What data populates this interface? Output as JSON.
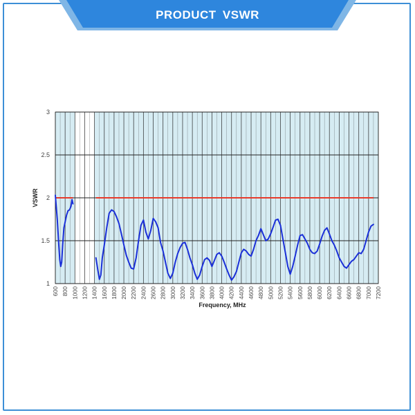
{
  "header": {
    "title": "PRODUCT  VSWR"
  },
  "colors": {
    "accent": "#3d8fd6",
    "plot_fill": "#d6ecf3",
    "grid": "#222222",
    "series": "#1a2fd8",
    "limit": "#e83a2a"
  },
  "chart_data": {
    "type": "line",
    "xlabel": "Frequency, MHz",
    "ylabel": "VSWR",
    "xlim": [
      600,
      7200
    ],
    "ylim": [
      1,
      3
    ],
    "x_ticks": [
      "600",
      "800",
      "1000",
      "1200",
      "1400",
      "1600",
      "1800",
      "2000",
      "2200",
      "2400",
      "2600",
      "2800",
      "3000",
      "3200",
      "3400",
      "3600",
      "3800",
      "4000",
      "4200",
      "4400",
      "4600",
      "4800",
      "5000",
      "5200",
      "5400",
      "5600",
      "5800",
      "6000",
      "6200",
      "6400",
      "6600",
      "6800",
      "7000",
      "7200"
    ],
    "y_ticks": [
      "1",
      "1.5",
      "2",
      "2.5",
      "3"
    ],
    "y_tick_values": [
      1,
      1.5,
      2,
      2.5,
      3
    ],
    "grid": true,
    "unshaded_bands": [
      [
        1000,
        1400
      ]
    ],
    "series": [
      {
        "color": "#1a2fd8",
        "segments": [
          [
            [
              600,
              2.03
            ],
            [
              640,
              1.75
            ],
            [
              670,
              1.45
            ],
            [
              690,
              1.28
            ],
            [
              710,
              1.2
            ],
            [
              730,
              1.25
            ],
            [
              750,
              1.45
            ],
            [
              775,
              1.65
            ],
            [
              800,
              1.72
            ],
            [
              830,
              1.8
            ],
            [
              860,
              1.85
            ],
            [
              890,
              1.86
            ],
            [
              920,
              1.9
            ],
            [
              940,
              1.98
            ],
            [
              960,
              1.93
            ]
          ],
          [
            [
              1430,
              1.3
            ],
            [
              1470,
              1.15
            ],
            [
              1500,
              1.05
            ],
            [
              1530,
              1.1
            ],
            [
              1560,
              1.3
            ],
            [
              1600,
              1.45
            ],
            [
              1650,
              1.65
            ],
            [
              1700,
              1.82
            ],
            [
              1750,
              1.86
            ],
            [
              1800,
              1.84
            ],
            [
              1850,
              1.78
            ],
            [
              1900,
              1.7
            ],
            [
              1950,
              1.58
            ],
            [
              2000,
              1.45
            ],
            [
              2050,
              1.33
            ],
            [
              2100,
              1.25
            ],
            [
              2150,
              1.18
            ],
            [
              2200,
              1.17
            ],
            [
              2250,
              1.3
            ],
            [
              2300,
              1.5
            ],
            [
              2350,
              1.68
            ],
            [
              2400,
              1.74
            ],
            [
              2450,
              1.6
            ],
            [
              2500,
              1.52
            ],
            [
              2550,
              1.62
            ],
            [
              2600,
              1.76
            ],
            [
              2650,
              1.72
            ],
            [
              2700,
              1.65
            ],
            [
              2750,
              1.48
            ],
            [
              2800,
              1.38
            ],
            [
              2850,
              1.25
            ],
            [
              2900,
              1.12
            ],
            [
              2950,
              1.06
            ],
            [
              3000,
              1.12
            ],
            [
              3050,
              1.25
            ],
            [
              3100,
              1.35
            ],
            [
              3150,
              1.42
            ],
            [
              3200,
              1.47
            ],
            [
              3250,
              1.48
            ],
            [
              3300,
              1.4
            ],
            [
              3350,
              1.3
            ],
            [
              3400,
              1.22
            ],
            [
              3450,
              1.12
            ],
            [
              3500,
              1.05
            ],
            [
              3550,
              1.1
            ],
            [
              3600,
              1.2
            ],
            [
              3650,
              1.28
            ],
            [
              3700,
              1.3
            ],
            [
              3750,
              1.27
            ],
            [
              3800,
              1.2
            ],
            [
              3850,
              1.27
            ],
            [
              3900,
              1.34
            ],
            [
              3950,
              1.36
            ],
            [
              4000,
              1.32
            ],
            [
              4050,
              1.25
            ],
            [
              4100,
              1.17
            ],
            [
              4150,
              1.1
            ],
            [
              4200,
              1.04
            ],
            [
              4250,
              1.08
            ],
            [
              4300,
              1.14
            ],
            [
              4350,
              1.25
            ],
            [
              4400,
              1.36
            ],
            [
              4450,
              1.4
            ],
            [
              4500,
              1.38
            ],
            [
              4550,
              1.34
            ],
            [
              4600,
              1.32
            ],
            [
              4650,
              1.4
            ],
            [
              4700,
              1.5
            ],
            [
              4750,
              1.56
            ],
            [
              4800,
              1.64
            ],
            [
              4850,
              1.57
            ],
            [
              4900,
              1.5
            ],
            [
              4950,
              1.52
            ],
            [
              5000,
              1.58
            ],
            [
              5050,
              1.66
            ],
            [
              5100,
              1.74
            ],
            [
              5150,
              1.75
            ],
            [
              5200,
              1.68
            ],
            [
              5250,
              1.52
            ],
            [
              5300,
              1.36
            ],
            [
              5350,
              1.2
            ],
            [
              5400,
              1.11
            ],
            [
              5450,
              1.2
            ],
            [
              5500,
              1.32
            ],
            [
              5550,
              1.45
            ],
            [
              5600,
              1.56
            ],
            [
              5650,
              1.57
            ],
            [
              5700,
              1.52
            ],
            [
              5750,
              1.47
            ],
            [
              5800,
              1.4
            ],
            [
              5850,
              1.36
            ],
            [
              5900,
              1.35
            ],
            [
              5950,
              1.38
            ],
            [
              6000,
              1.46
            ],
            [
              6050,
              1.55
            ],
            [
              6100,
              1.62
            ],
            [
              6150,
              1.65
            ],
            [
              6200,
              1.58
            ],
            [
              6250,
              1.5
            ],
            [
              6300,
              1.45
            ],
            [
              6350,
              1.38
            ],
            [
              6400,
              1.3
            ],
            [
              6450,
              1.25
            ],
            [
              6500,
              1.2
            ],
            [
              6550,
              1.18
            ],
            [
              6600,
              1.22
            ],
            [
              6650,
              1.26
            ],
            [
              6700,
              1.28
            ],
            [
              6750,
              1.32
            ],
            [
              6800,
              1.36
            ],
            [
              6850,
              1.35
            ],
            [
              6900,
              1.4
            ],
            [
              6950,
              1.5
            ],
            [
              7000,
              1.6
            ],
            [
              7050,
              1.67
            ],
            [
              7100,
              1.69
            ]
          ]
        ]
      }
    ],
    "reference_lines": [
      {
        "color": "#e83a2a",
        "y": 2,
        "segments": [
          [
            [
              600,
              960
            ]
          ],
          [
            [
              1430,
              7100
            ]
          ]
        ]
      }
    ]
  }
}
